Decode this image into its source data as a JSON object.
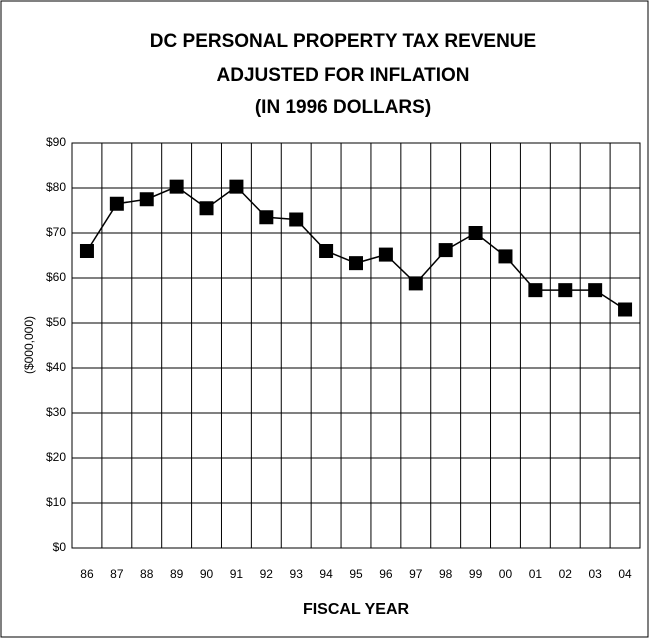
{
  "chart_data": {
    "type": "line",
    "title": [
      "DC PERSONAL PROPERTY TAX REVENUE",
      "ADJUSTED FOR INFLATION",
      "(IN 1996 DOLLARS)"
    ],
    "x_label": "FISCAL YEAR",
    "y_label": "($000,000)",
    "categories": [
      "86",
      "87",
      "88",
      "89",
      "90",
      "91",
      "92",
      "93",
      "94",
      "95",
      "96",
      "97",
      "98",
      "99",
      "00",
      "01",
      "02",
      "03",
      "04"
    ],
    "values": [
      66,
      76.5,
      77.5,
      80.3,
      75.5,
      80.3,
      73.5,
      73,
      66,
      63.3,
      65.2,
      58.8,
      66.2,
      70,
      64.8,
      57.3,
      57.3,
      57.3,
      53
    ],
    "color": "#000000",
    "ylim": [
      0,
      90
    ],
    "yticks": [
      {
        "value": 0,
        "label": "$0"
      },
      {
        "value": 10,
        "label": "$10"
      },
      {
        "value": 20,
        "label": "$20"
      },
      {
        "value": 30,
        "label": "$30"
      },
      {
        "value": 40,
        "label": "$40"
      },
      {
        "value": 50,
        "label": "$50"
      },
      {
        "value": 60,
        "label": "$60"
      },
      {
        "value": 70,
        "label": "$70"
      },
      {
        "value": 80,
        "label": "$80"
      },
      {
        "value": 90,
        "label": "$90"
      }
    ],
    "grid": true
  }
}
